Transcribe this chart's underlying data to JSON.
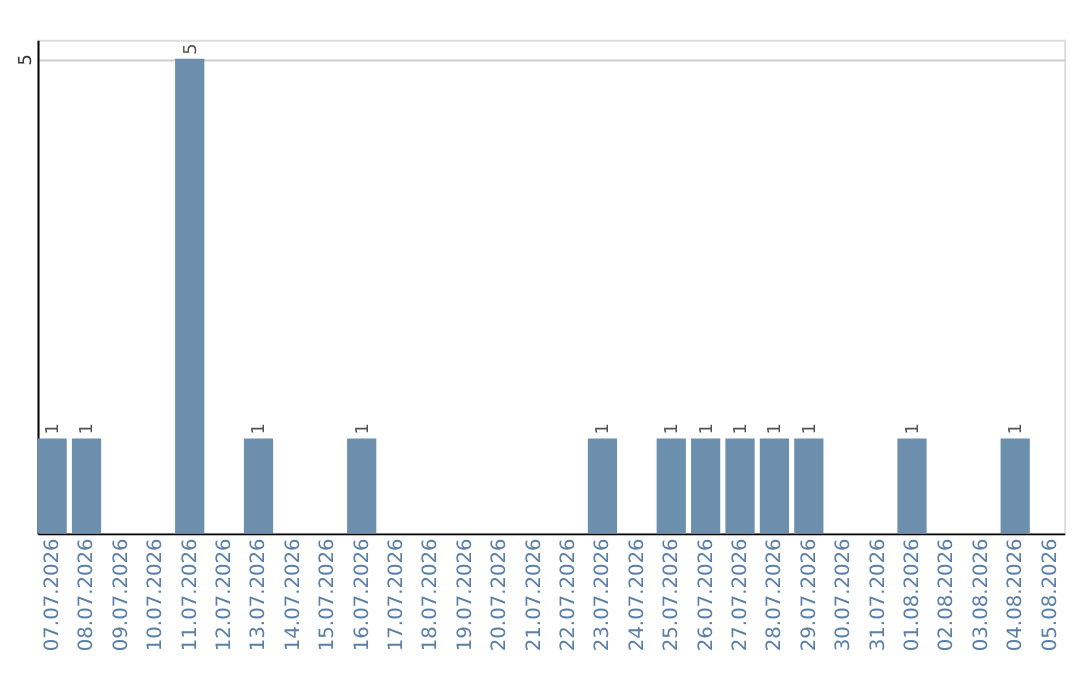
{
  "chart_data": {
    "type": "bar",
    "categories": [
      "07.07.2026",
      "08.07.2026",
      "09.07.2026",
      "10.07.2026",
      "11.07.2026",
      "12.07.2026",
      "13.07.2026",
      "14.07.2026",
      "15.07.2026",
      "16.07.2026",
      "17.07.2026",
      "18.07.2026",
      "19.07.2026",
      "20.07.2026",
      "21.07.2026",
      "22.07.2026",
      "23.07.2026",
      "24.07.2026",
      "25.07.2026",
      "26.07.2026",
      "27.07.2026",
      "28.07.2026",
      "29.07.2026",
      "30.07.2026",
      "31.07.2026",
      "01.08.2026",
      "02.08.2026",
      "03.08.2026",
      "04.08.2026",
      "05.08.2026"
    ],
    "values": [
      1,
      1,
      null,
      null,
      5,
      null,
      1,
      null,
      null,
      1,
      null,
      null,
      null,
      null,
      null,
      null,
      1,
      null,
      1,
      1,
      1,
      1,
      1,
      null,
      null,
      1,
      null,
      null,
      1,
      null
    ],
    "color": "#6d8fae",
    "ylim": [
      0,
      5.2
    ],
    "yticks": [
      5
    ],
    "grid": "y",
    "data_labels": true
  }
}
